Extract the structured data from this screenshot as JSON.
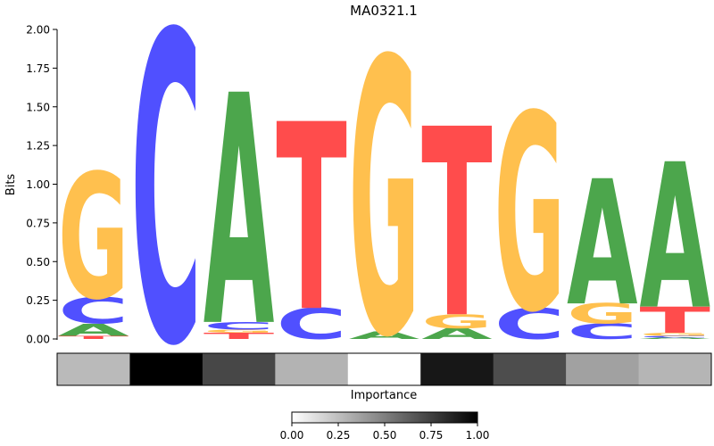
{
  "chart_data": {
    "type": "sequence-logo",
    "title": "MA0321.1",
    "ylabel": "Bits",
    "ylim": [
      0,
      2.0
    ],
    "yticks": [
      "0.00",
      "0.25",
      "0.50",
      "0.75",
      "1.00",
      "1.25",
      "1.50",
      "1.75",
      "2.00"
    ],
    "base_colors": {
      "A": "#4ca64c",
      "C": "#5050ff",
      "G": "#ffc04e",
      "T": "#ff4c4c"
    },
    "positions": [
      {
        "stack": [
          [
            "T",
            0.02
          ],
          [
            "A",
            0.08
          ],
          [
            "C",
            0.17
          ],
          [
            "G",
            0.81
          ]
        ]
      },
      {
        "stack": [
          [
            "C",
            2.0
          ]
        ]
      },
      {
        "stack": [
          [
            "T",
            0.04
          ],
          [
            "G",
            0.02
          ],
          [
            "C",
            0.05
          ],
          [
            "A",
            1.49
          ]
        ]
      },
      {
        "stack": [
          [
            "C",
            0.2
          ],
          [
            "T",
            1.21
          ]
        ]
      },
      {
        "stack": [
          [
            "A",
            0.05
          ],
          [
            "G",
            1.78
          ]
        ]
      },
      {
        "stack": [
          [
            "A",
            0.07
          ],
          [
            "G",
            0.09
          ],
          [
            "T",
            1.22
          ]
        ]
      },
      {
        "stack": [
          [
            "C",
            0.2
          ],
          [
            "G",
            1.27
          ]
        ]
      },
      {
        "stack": [
          [
            "C",
            0.1
          ],
          [
            "G",
            0.13
          ],
          [
            "A",
            0.81
          ]
        ]
      },
      {
        "stack": [
          [
            "A",
            0.01
          ],
          [
            "C",
            0.01
          ],
          [
            "G",
            0.02
          ],
          [
            "T",
            0.17
          ],
          [
            "A",
            0.94
          ]
        ]
      }
    ],
    "importance": [
      0.27,
      1.0,
      0.72,
      0.3,
      0.0,
      0.91,
      0.7,
      0.37,
      0.29
    ],
    "importance_label": "Importance",
    "colorbar_ticks": [
      "0.00",
      "0.25",
      "0.50",
      "0.75",
      "1.00"
    ]
  }
}
